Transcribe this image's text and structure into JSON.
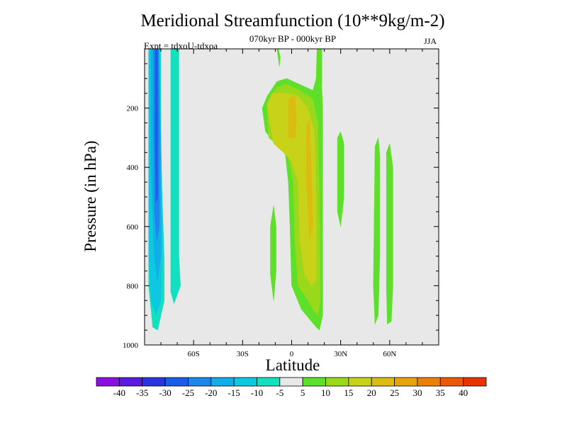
{
  "chart_data": {
    "type": "contour",
    "title": "Meridional Streamfunction (10**9kg/m-2)",
    "subtitle": "070kyr BP - 000kyr BP",
    "annotation_left": "Expt = tdxoU-tdxoa",
    "annotation_right": "JJA",
    "xlabel": "Latitude",
    "ylabel": "Pressure (in hPa)",
    "xlim": [
      -90,
      90
    ],
    "ylim": [
      1000,
      0
    ],
    "x_ticks": [
      -60,
      -30,
      0,
      30,
      60
    ],
    "x_tick_labels": [
      "60S",
      "30S",
      "0",
      "30N",
      "60N"
    ],
    "y_ticks": [
      200,
      400,
      600,
      800,
      1000
    ],
    "y_tick_labels": [
      "200",
      "400",
      "600",
      "800",
      "1000"
    ],
    "background_color": "#e8e8e8",
    "colorbar": {
      "labels": [
        "-40",
        "-35",
        "-30",
        "-25",
        "-20",
        "-15",
        "-10",
        "-5",
        "5",
        "10",
        "15",
        "20",
        "25",
        "30",
        "35",
        "40"
      ],
      "colors": [
        "#8a10e0",
        "#5a1ae0",
        "#2a35e0",
        "#1a5ee8",
        "#1b87ea",
        "#12aee8",
        "#0dc8e0",
        "#12e0c0",
        "#e8e8e8",
        "#5ee02a",
        "#9ad81c",
        "#c8d218",
        "#dcbc10",
        "#e8a20c",
        "#ea8008",
        "#ea5a06",
        "#e83204"
      ]
    },
    "regions": [
      {
        "level": -5,
        "points": [
          [
            -87.5,
            0
          ],
          [
            -80,
            0
          ],
          [
            -80,
            400
          ],
          [
            -78,
            700
          ],
          [
            -78,
            850
          ],
          [
            -82,
            950
          ],
          [
            -85,
            940
          ],
          [
            -87.5,
            800
          ]
        ]
      },
      {
        "level": -5,
        "points": [
          [
            -74,
            0
          ],
          [
            -69,
            0
          ],
          [
            -69,
            700
          ],
          [
            -68,
            800
          ],
          [
            -72,
            860
          ],
          [
            -74,
            820
          ]
        ]
      },
      {
        "level": -10,
        "points": [
          [
            -87.5,
            0
          ],
          [
            -82,
            0
          ],
          [
            -80,
            300
          ],
          [
            -79,
            600
          ],
          [
            -80,
            850
          ],
          [
            -83,
            900
          ],
          [
            -86,
            850
          ],
          [
            -87.5,
            700
          ]
        ]
      },
      {
        "level": -15,
        "points": [
          [
            -86,
            0
          ],
          [
            -81,
            0
          ],
          [
            -80,
            400
          ],
          [
            -80,
            700
          ],
          [
            -82,
            780
          ],
          [
            -84,
            700
          ],
          [
            -86,
            400
          ]
        ]
      },
      {
        "level": -20,
        "points": [
          [
            -84.5,
            0
          ],
          [
            -81.5,
            0
          ],
          [
            -81,
            300
          ],
          [
            -81,
            600
          ],
          [
            -82.5,
            650
          ],
          [
            -84,
            550
          ],
          [
            -84.5,
            200
          ]
        ]
      },
      {
        "level": -25,
        "points": [
          [
            -83.5,
            0
          ],
          [
            -82,
            0
          ],
          [
            -82,
            300
          ],
          [
            -82,
            500
          ],
          [
            -83,
            520
          ],
          [
            -83.5,
            300
          ]
        ]
      },
      {
        "level": 5,
        "points": [
          [
            -18,
            200
          ],
          [
            -15,
            160
          ],
          [
            -9,
            110
          ],
          [
            -3,
            100
          ],
          [
            5,
            120
          ],
          [
            13,
            140
          ],
          [
            15,
            100
          ],
          [
            15.5,
            0
          ],
          [
            17.5,
            0
          ],
          [
            19,
            200
          ],
          [
            19,
            500
          ],
          [
            19,
            900
          ],
          [
            17,
            950
          ],
          [
            15,
            940
          ],
          [
            12,
            920
          ],
          [
            6,
            880
          ],
          [
            0,
            800
          ],
          [
            -1,
            600
          ],
          [
            -2,
            450
          ],
          [
            -4,
            350
          ],
          [
            -8,
            310
          ],
          [
            -13,
            300
          ],
          [
            -16,
            280
          ]
        ]
      },
      {
        "level": 5,
        "points": [
          [
            -9,
            0
          ],
          [
            -8,
            0
          ],
          [
            -7,
            30
          ],
          [
            -7.5,
            60
          ]
        ]
      },
      {
        "level": 5,
        "points": [
          [
            16.5,
            0
          ],
          [
            18.5,
            0
          ],
          [
            18.5,
            120
          ],
          [
            16,
            120
          ]
        ]
      },
      {
        "level": 5,
        "points": [
          [
            28,
            300
          ],
          [
            30,
            280
          ],
          [
            32,
            320
          ],
          [
            32,
            500
          ],
          [
            30,
            600
          ],
          [
            28,
            550
          ]
        ]
      },
      {
        "level": 5,
        "points": [
          [
            -13,
            600
          ],
          [
            -11,
            530
          ],
          [
            -9.5,
            600
          ],
          [
            -9.5,
            750
          ],
          [
            -11,
            850
          ],
          [
            -13,
            760
          ]
        ]
      },
      {
        "level": 5,
        "points": [
          [
            51,
            330
          ],
          [
            53,
            300
          ],
          [
            54,
            360
          ],
          [
            54,
            700
          ],
          [
            53,
            900
          ],
          [
            51,
            930
          ],
          [
            50,
            800
          ]
        ]
      },
      {
        "level": 5,
        "points": [
          [
            58,
            350
          ],
          [
            60,
            320
          ],
          [
            62,
            400
          ],
          [
            62,
            800
          ],
          [
            61,
            920
          ],
          [
            58.5,
            930
          ],
          [
            58,
            800
          ]
        ]
      },
      {
        "level": 10,
        "points": [
          [
            -15,
            180
          ],
          [
            -9,
            130
          ],
          [
            -3,
            120
          ],
          [
            5,
            140
          ],
          [
            13,
            170
          ],
          [
            16,
            250
          ],
          [
            17,
            500
          ],
          [
            17.5,
            850
          ],
          [
            16,
            900
          ],
          [
            13,
            880
          ],
          [
            9,
            840
          ],
          [
            4,
            800
          ],
          [
            2,
            650
          ],
          [
            1,
            450
          ],
          [
            -2,
            360
          ],
          [
            -8,
            330
          ],
          [
            -14,
            300
          ]
        ]
      },
      {
        "level": 15,
        "points": [
          [
            -15,
            190
          ],
          [
            -12,
            150
          ],
          [
            -3,
            150
          ],
          [
            4,
            160
          ],
          [
            10,
            200
          ],
          [
            14,
            280
          ],
          [
            15,
            500
          ],
          [
            15,
            780
          ],
          [
            12,
            800
          ],
          [
            8,
            760
          ],
          [
            5,
            650
          ],
          [
            4,
            450
          ],
          [
            0,
            380
          ],
          [
            -5,
            350
          ],
          [
            -11,
            320
          ]
        ]
      },
      {
        "level": 20,
        "points": [
          [
            -2,
            170
          ],
          [
            2,
            160
          ],
          [
            3,
            240
          ],
          [
            2,
            300
          ],
          [
            -2,
            300
          ]
        ]
      },
      {
        "level": 20,
        "points": [
          [
            9,
            260
          ],
          [
            11,
            240
          ],
          [
            12,
            400
          ],
          [
            13,
            600
          ],
          [
            11,
            650
          ],
          [
            9,
            450
          ]
        ]
      }
    ]
  }
}
